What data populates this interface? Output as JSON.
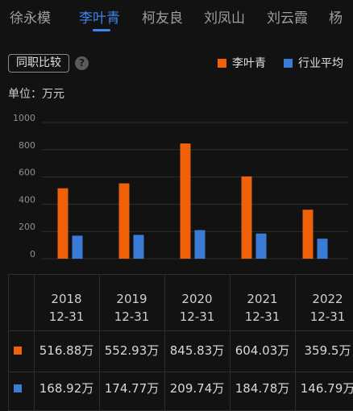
{
  "tabs": [
    {
      "label": "徐永模",
      "active": false
    },
    {
      "label": "李叶青",
      "active": true
    },
    {
      "label": "柯友良",
      "active": false
    },
    {
      "label": "刘凤山",
      "active": false
    },
    {
      "label": "刘云霞",
      "active": false
    },
    {
      "label": "杨",
      "active": false
    }
  ],
  "toolbar": {
    "compare_label": "同职比较",
    "help_glyph": "?"
  },
  "legend": [
    {
      "name": "李叶青",
      "color": "#f0620a"
    },
    {
      "name": "行业平均",
      "color": "#3a7bd5"
    }
  ],
  "unit_label": "单位：万元",
  "chart_data": {
    "type": "bar",
    "categories": [
      "2018-12-31",
      "2019-12-31",
      "2020-12-31",
      "2021-12-31",
      "2022-12-31"
    ],
    "series": [
      {
        "name": "李叶青",
        "color": "#f0620a",
        "values": [
          516.88,
          552.93,
          845.83,
          604.03,
          359.5
        ]
      },
      {
        "name": "行业平均",
        "color": "#3a7bd5",
        "values": [
          168.92,
          174.77,
          209.74,
          184.78,
          146.79
        ]
      }
    ],
    "yticks": [
      "1000",
      "800",
      "600",
      "400",
      "200",
      "0"
    ],
    "ylim": [
      0,
      1000
    ],
    "grid": true
  },
  "table": {
    "columns": [
      {
        "year": "2018",
        "date": "12-31"
      },
      {
        "year": "2019",
        "date": "12-31"
      },
      {
        "year": "2020",
        "date": "12-31"
      },
      {
        "year": "2021",
        "date": "12-31"
      },
      {
        "year": "2022",
        "date": "12-31"
      }
    ],
    "rows": [
      {
        "color": "#f0620a",
        "cells": [
          "516.88万",
          "552.93万",
          "845.83万",
          "604.03万",
          "359.5万"
        ]
      },
      {
        "color": "#3a7bd5",
        "cells": [
          "168.92万",
          "174.77万",
          "209.74万",
          "184.78万",
          "146.79万"
        ]
      }
    ]
  }
}
